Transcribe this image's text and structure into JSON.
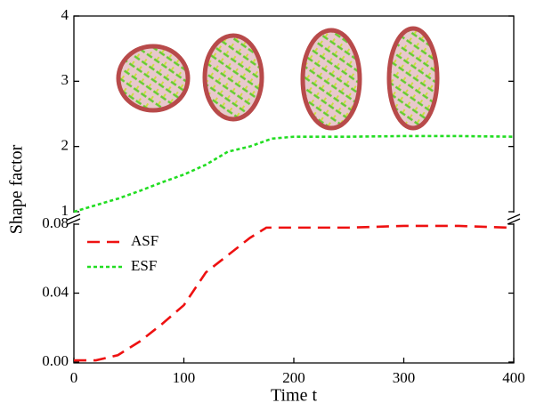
{
  "chart_data": [
    {
      "type": "line",
      "ylabel": "Shape factor",
      "x": [
        0,
        20,
        40,
        60,
        80,
        100,
        120,
        140,
        160,
        180,
        200,
        250,
        300,
        350,
        400
      ],
      "xlim": [
        0,
        400
      ],
      "ylim": [
        1,
        4
      ],
      "yticks": [
        1,
        2,
        3,
        4
      ],
      "series": [
        {
          "name": "ESF",
          "color": "#22dd22",
          "dash": "4 3",
          "values": [
            1.0,
            1.1,
            1.2,
            1.32,
            1.45,
            1.57,
            1.72,
            1.92,
            2.0,
            2.12,
            2.15,
            2.15,
            2.16,
            2.16,
            2.15
          ]
        }
      ]
    },
    {
      "type": "line",
      "xlabel": "Time t",
      "x": [
        0,
        20,
        40,
        60,
        80,
        100,
        120,
        140,
        160,
        175,
        200,
        250,
        300,
        350,
        395
      ],
      "xlim": [
        0,
        400
      ],
      "xticks": [
        0,
        100,
        200,
        300,
        400
      ],
      "ylim": [
        0,
        0.08
      ],
      "yticks": [
        {
          "value": 0,
          "label": "0.00"
        },
        {
          "value": 0.04,
          "label": "0.04"
        },
        {
          "value": 0.08,
          "label": "0.08"
        }
      ],
      "series": [
        {
          "name": "ASF",
          "color": "#ee1111",
          "dash": "14 8",
          "values": [
            0.001,
            0.001,
            0.004,
            0.012,
            0.022,
            0.033,
            0.052,
            0.062,
            0.072,
            0.078,
            0.078,
            0.078,
            0.079,
            0.079,
            0.078
          ]
        }
      ]
    }
  ]
}
